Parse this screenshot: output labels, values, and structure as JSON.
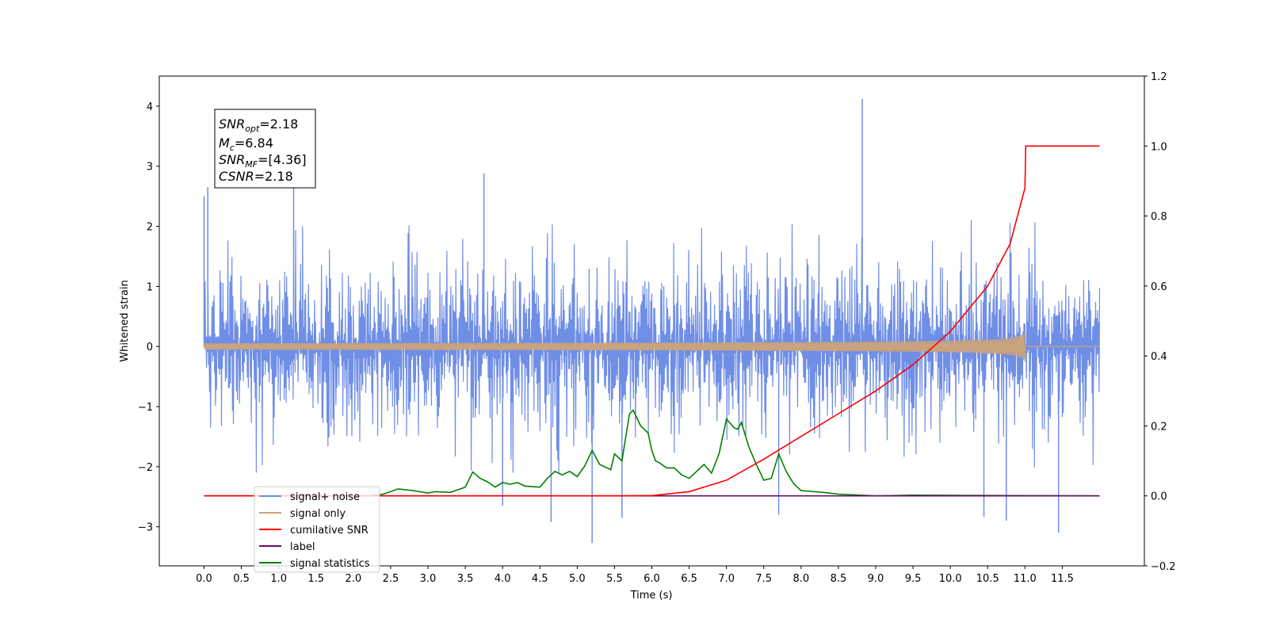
{
  "chart_data": {
    "type": "line",
    "xlabel": "Time (s)",
    "ylabel_left": "Whitened strain",
    "ylabel_right": "",
    "xlim": [
      -0.6,
      12.6
    ],
    "ylim_left": [
      -3.65,
      4.5
    ],
    "ylim_right": [
      -0.2,
      1.2
    ],
    "x_ticks": [
      0.0,
      0.5,
      1.0,
      1.5,
      2.0,
      2.5,
      3.0,
      3.5,
      4.0,
      4.5,
      5.0,
      5.5,
      6.0,
      6.5,
      7.0,
      7.5,
      8.0,
      8.5,
      9.0,
      9.5,
      10.0,
      10.5,
      11.0,
      11.5
    ],
    "x_tick_labels": [
      "0.0",
      "0.5",
      "1.0",
      "1.5",
      "2.0",
      "2.5",
      "3.0",
      "3.5",
      "4.0",
      "4.5",
      "5.0",
      "5.5",
      "6.0",
      "6.5",
      "7.0",
      "7.5",
      "8.0",
      "8.5",
      "9.0",
      "9.5",
      "10.0",
      "10.5",
      "11.0",
      "11.5"
    ],
    "y_ticks_left": [
      -3,
      -2,
      -1,
      0,
      1,
      2,
      3,
      4
    ],
    "y_tick_labels_left": [
      "−3",
      "−2",
      "−1",
      "0",
      "1",
      "2",
      "3",
      "4"
    ],
    "y_ticks_right": [
      -0.2,
      0.0,
      0.2,
      0.4,
      0.6,
      0.8,
      1.0,
      1.2
    ],
    "y_tick_labels_right": [
      "−0.2",
      "0.0",
      "0.2",
      "0.4",
      "0.6",
      "0.8",
      "1.0",
      "1.2"
    ],
    "grid": false,
    "legend_placement": "lower-left",
    "annotations": {
      "snr_opt": {
        "base": "SNR",
        "sub": "opt",
        "value": "=2.18"
      },
      "mc": {
        "base": "M",
        "sub": "c",
        "value": "=6.84"
      },
      "snr_mf": {
        "base": "SNR",
        "sub": "MF",
        "value": "=[4.36]"
      },
      "csnr": {
        "base": "CSNR",
        "value": "=2.18"
      }
    },
    "series": [
      {
        "name": "signal+ noise",
        "axis": "left",
        "color": "#6f8ee6",
        "style": "noise",
        "x_range": [
          0.0,
          12.0
        ],
        "mean": 0.0,
        "envelope_high": 2.4,
        "envelope_low": -2.1,
        "spikes": [
          [
            0.0,
            2.5
          ],
          [
            0.05,
            2.65
          ],
          [
            1.2,
            2.75
          ],
          [
            3.75,
            2.88
          ],
          [
            8.82,
            4.12
          ],
          [
            5.2,
            -3.27
          ],
          [
            11.45,
            -3.1
          ],
          [
            4.65,
            -2.92
          ],
          [
            10.75,
            -2.9
          ],
          [
            7.7,
            -2.8
          ],
          [
            5.6,
            -2.85
          ],
          [
            4.0,
            -2.65
          ],
          [
            10.45,
            -2.83
          ]
        ]
      },
      {
        "name": "signal only",
        "axis": "left",
        "color": "#c9a37d",
        "style": "chirp",
        "x_range": [
          0.0,
          12.0
        ],
        "end_time": 11.0,
        "max_amplitude": 0.26
      },
      {
        "name": "cumilative SNR",
        "axis": "right",
        "color": "#ff0000",
        "x": [
          0.0,
          5.5,
          6.0,
          6.5,
          7.0,
          7.5,
          8.0,
          8.5,
          9.0,
          9.5,
          10.0,
          10.5,
          10.8,
          11.0,
          11.01,
          12.0
        ],
        "values": [
          0.0,
          0.0,
          0.001,
          0.012,
          0.045,
          0.105,
          0.17,
          0.235,
          0.3,
          0.375,
          0.47,
          0.6,
          0.72,
          0.88,
          1.0,
          1.0
        ]
      },
      {
        "name": "label",
        "axis": "right",
        "color": "#6a0d6a",
        "x": [
          0.0,
          12.0
        ],
        "values": [
          0.0,
          0.0
        ]
      },
      {
        "name": "signal statistics",
        "axis": "right",
        "color": "#008000",
        "x": [
          0.0,
          2.2,
          2.4,
          2.5,
          2.6,
          2.8,
          3.0,
          3.1,
          3.3,
          3.5,
          3.6,
          3.7,
          3.8,
          3.9,
          4.0,
          4.1,
          4.2,
          4.3,
          4.5,
          4.6,
          4.7,
          4.8,
          4.9,
          5.0,
          5.1,
          5.2,
          5.3,
          5.45,
          5.5,
          5.6,
          5.7,
          5.75,
          5.85,
          5.95,
          6.0,
          6.05,
          6.1,
          6.2,
          6.3,
          6.4,
          6.5,
          6.6,
          6.7,
          6.8,
          6.9,
          7.0,
          7.1,
          7.15,
          7.2,
          7.3,
          7.4,
          7.5,
          7.6,
          7.7,
          7.8,
          7.9,
          8.0,
          8.3,
          8.5,
          9.0,
          9.5,
          12.0
        ],
        "values": [
          0.0,
          0.0,
          0.005,
          0.012,
          0.02,
          0.015,
          0.008,
          0.012,
          0.01,
          0.025,
          0.068,
          0.05,
          0.04,
          0.025,
          0.038,
          0.033,
          0.038,
          0.028,
          0.025,
          0.05,
          0.07,
          0.06,
          0.07,
          0.055,
          0.085,
          0.13,
          0.09,
          0.075,
          0.12,
          0.1,
          0.235,
          0.245,
          0.2,
          0.18,
          0.13,
          0.1,
          0.095,
          0.08,
          0.08,
          0.06,
          0.05,
          0.07,
          0.09,
          0.065,
          0.12,
          0.22,
          0.195,
          0.19,
          0.21,
          0.14,
          0.09,
          0.045,
          0.05,
          0.12,
          0.07,
          0.035,
          0.015,
          0.01,
          0.005,
          0.0,
          0.002,
          0.0
        ]
      }
    ]
  }
}
